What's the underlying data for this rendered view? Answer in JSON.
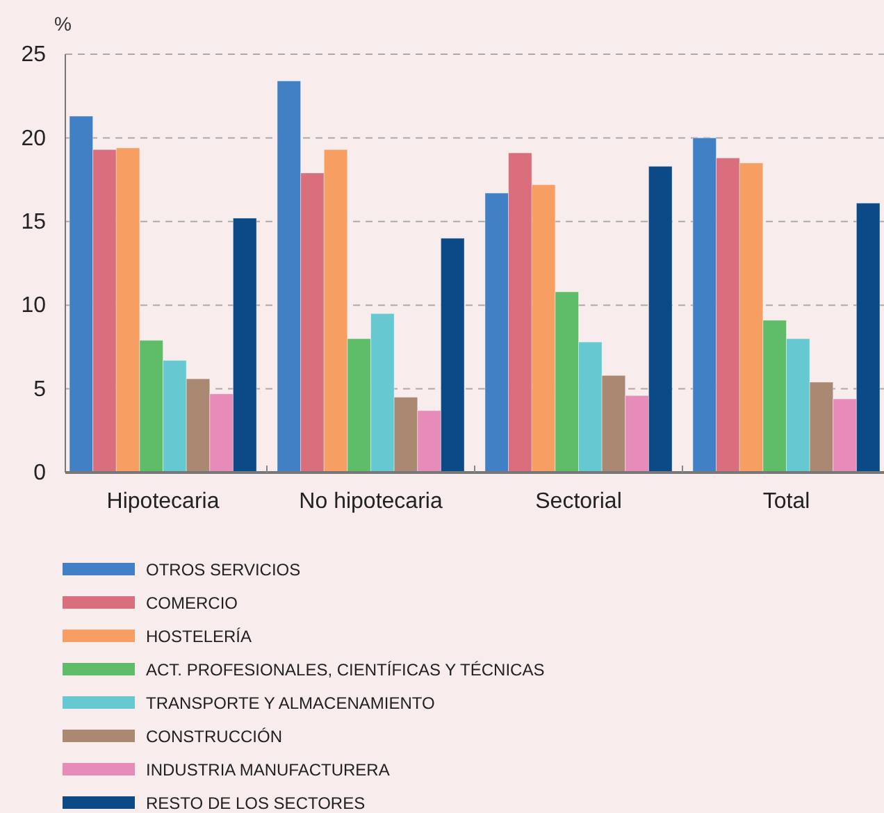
{
  "chart_data": {
    "type": "bar",
    "ylabel": "%",
    "categories": [
      "Hipotecaria",
      "No hipotecaria",
      "Sectorial",
      "Total"
    ],
    "series": [
      {
        "name": "OTROS SERVICIOS",
        "color": "#4180c4",
        "values": [
          21.3,
          23.4,
          16.7,
          20.0
        ]
      },
      {
        "name": "COMERCIO",
        "color": "#d96f7c",
        "values": [
          19.3,
          17.9,
          19.1,
          18.8
        ]
      },
      {
        "name": "HOSTELERÍA",
        "color": "#f79e63",
        "values": [
          19.4,
          19.3,
          17.2,
          18.5
        ]
      },
      {
        "name": "ACT. PROFESIONALES, CIENTÍFICAS Y TÉCNICAS",
        "color": "#5fbd6a",
        "values": [
          7.9,
          8.0,
          10.8,
          9.1
        ]
      },
      {
        "name": "TRANSPORTE Y ALMACENAMIENTO",
        "color": "#66c9d1",
        "values": [
          6.7,
          9.5,
          7.8,
          8.0
        ]
      },
      {
        "name": "CONSTRUCCIÓN",
        "color": "#ab8871",
        "values": [
          5.6,
          4.5,
          5.8,
          5.4
        ]
      },
      {
        "name": "INDUSTRIA MANUFACTURERA",
        "color": "#e78cb8",
        "values": [
          4.7,
          3.7,
          4.6,
          4.4
        ]
      },
      {
        "name": "RESTO DE LOS SECTORES",
        "color": "#0c4a87",
        "values": [
          15.2,
          14.0,
          18.3,
          16.1
        ]
      }
    ],
    "ylim": [
      0,
      25
    ],
    "yticks": [
      0,
      5,
      10,
      15,
      20,
      25
    ],
    "grid": "y",
    "legend": "bottom"
  }
}
